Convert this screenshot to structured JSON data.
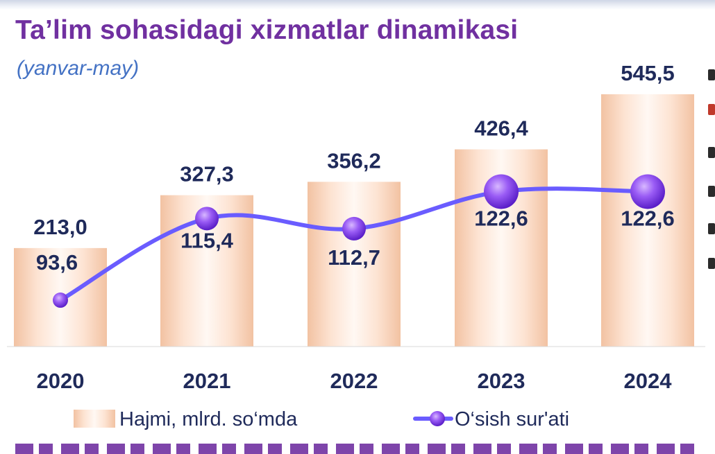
{
  "title": "Ta’lim sohasidagi xizmatlar dinamikasi",
  "subtitle": "(yanvar-may)",
  "colors": {
    "title": "#7030a0",
    "subtitle": "#4472c4",
    "bar_edge": "#f2c4a6",
    "bar_center": "#fff6f0",
    "line": "#6a5cff",
    "marker": "#8a3cf0",
    "label": "#1f2a5a"
  },
  "chart_data": {
    "type": "bar",
    "categories": [
      "2020",
      "2021",
      "2022",
      "2023",
      "2024"
    ],
    "series": [
      {
        "name": "Hajmi, mlrd. so‘mda",
        "type": "bar",
        "values": [
          213.0,
          327.3,
          356.2,
          426.4,
          545.5
        ],
        "labels": [
          "213,0",
          "327,3",
          "356,2",
          "426,4",
          "545,5"
        ]
      },
      {
        "name": "O‘sish sur'ati",
        "type": "line",
        "values": [
          93.6,
          115.4,
          112.7,
          122.6,
          122.6
        ],
        "labels": [
          "93,6",
          "115,4",
          "112,7",
          "122,6",
          "122,6"
        ]
      }
    ],
    "title": "Ta’lim sohasidagi xizmatlar dinamikasi",
    "subtitle": "(yanvar-may)",
    "legend_position": "bottom",
    "grid": false
  }
}
